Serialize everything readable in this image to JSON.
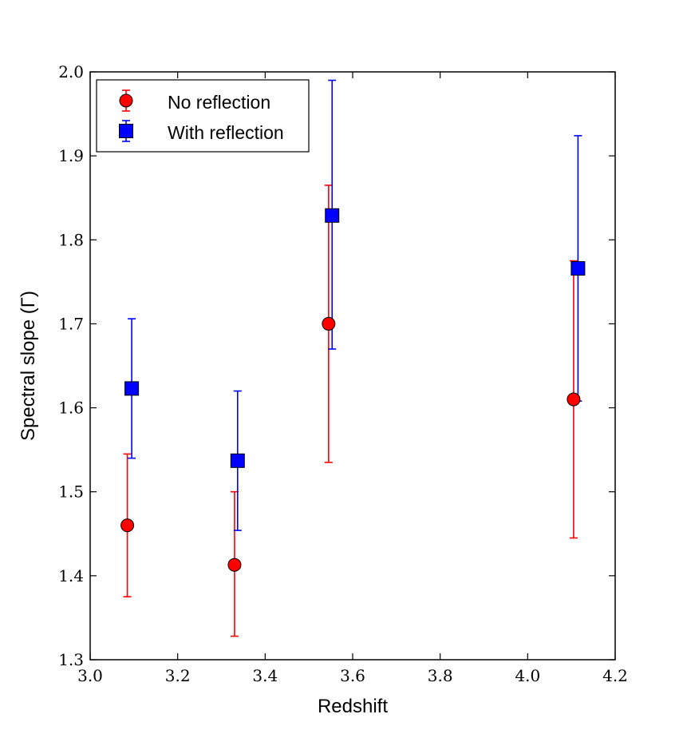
{
  "chart_data": {
    "type": "scatter",
    "title": "",
    "xlabel": "Redshift",
    "ylabel": "Spectral slope (Γ)",
    "xlim": [
      3.0,
      4.2
    ],
    "ylim": [
      1.3,
      2.0
    ],
    "xticks": [
      "3.0",
      "3.2",
      "3.4",
      "3.6",
      "3.8",
      "4.0",
      "4.2"
    ],
    "yticks": [
      "1.3",
      "1.4",
      "1.5",
      "1.6",
      "1.7",
      "1.8",
      "1.9",
      "2.0"
    ],
    "grid": false,
    "legend_position": "top-left",
    "series": [
      {
        "name": "No reflection",
        "marker": "circle",
        "color": "#ff0000",
        "x": [
          3.085,
          3.33,
          3.545,
          4.105
        ],
        "y": [
          1.46,
          1.413,
          1.7,
          1.61
        ],
        "err_low": [
          0.085,
          0.085,
          0.165,
          0.165
        ],
        "err_high": [
          0.085,
          0.087,
          0.165,
          0.165
        ]
      },
      {
        "name": "With reflection",
        "marker": "square",
        "color": "#0000ff",
        "x": [
          3.095,
          3.337,
          3.553,
          4.115
        ],
        "y": [
          1.623,
          1.537,
          1.829,
          1.766
        ],
        "err_low": [
          0.083,
          0.083,
          0.159,
          0.158
        ],
        "err_high": [
          0.083,
          0.083,
          0.161,
          0.158
        ]
      }
    ]
  }
}
